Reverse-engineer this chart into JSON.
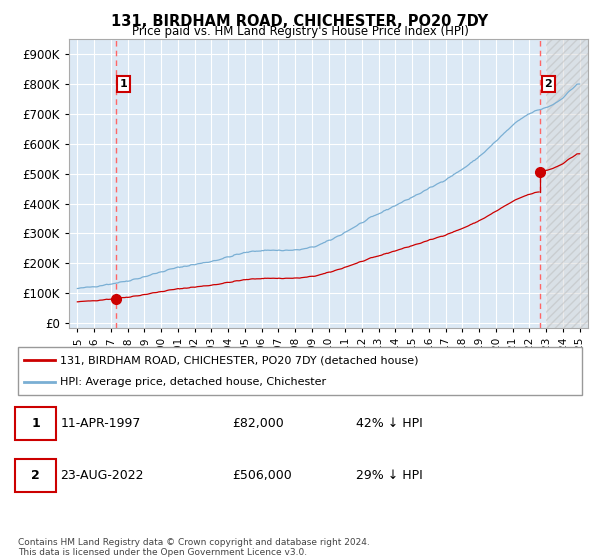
{
  "title": "131, BIRDHAM ROAD, CHICHESTER, PO20 7DY",
  "subtitle": "Price paid vs. HM Land Registry's House Price Index (HPI)",
  "sale1_year": 1997.28,
  "sale1_price": 82000,
  "sale1_label": "1",
  "sale1_date": "11-APR-1997",
  "sale1_pct": "42% ↓ HPI",
  "sale2_year": 2022.64,
  "sale2_price": 506000,
  "sale2_label": "2",
  "sale2_date": "23-AUG-2022",
  "sale2_pct": "29% ↓ HPI",
  "red_line_color": "#cc0000",
  "blue_line_color": "#7aafd4",
  "dashed_line_color": "#ff6666",
  "plot_bg": "#dce9f5",
  "grid_color": "#ffffff",
  "legend1": "131, BIRDHAM ROAD, CHICHESTER, PO20 7DY (detached house)",
  "legend2": "HPI: Average price, detached house, Chichester",
  "footer": "Contains HM Land Registry data © Crown copyright and database right 2024.\nThis data is licensed under the Open Government Licence v3.0.",
  "ylabel_ticks": [
    0,
    100000,
    200000,
    300000,
    400000,
    500000,
    600000,
    700000,
    800000,
    900000
  ],
  "ylabel_labels": [
    "£0",
    "£100K",
    "£200K",
    "£300K",
    "£400K",
    "£500K",
    "£600K",
    "£700K",
    "£800K",
    "£900K"
  ],
  "xlim_min": 1994.5,
  "xlim_max": 2025.5,
  "ylim_min": -15000,
  "ylim_max": 950000,
  "hatch_start": 2023.0
}
